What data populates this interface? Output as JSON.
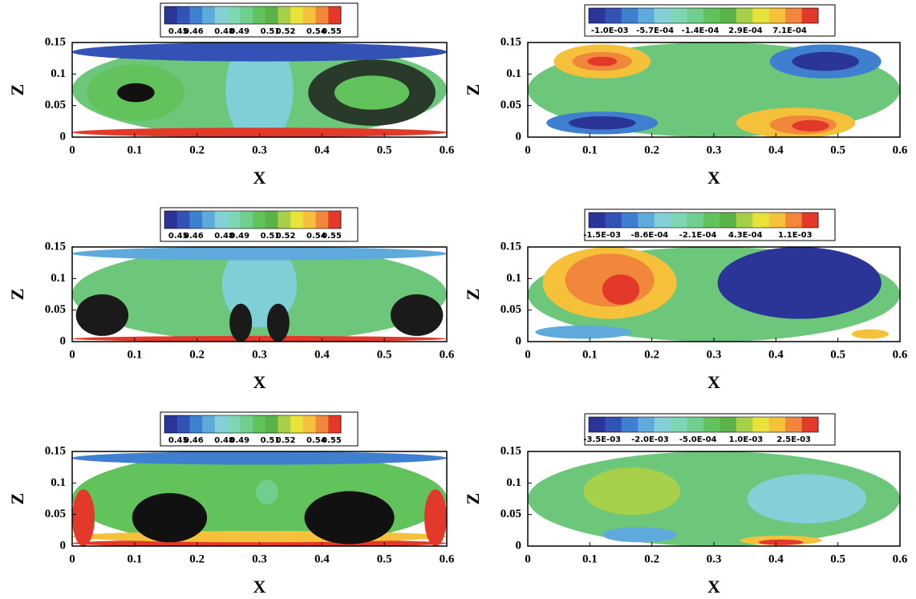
{
  "chart_data": [
    {
      "type": "contour",
      "xlabel": "X",
      "ylabel": "Z",
      "xlim": [
        0,
        0.6
      ],
      "ylim": [
        0,
        0.15
      ],
      "xticks": [
        0,
        0.1,
        0.2,
        0.3,
        0.4,
        0.5,
        0.6
      ],
      "yticks": [
        0,
        0.05,
        0.1,
        0.15
      ],
      "colorbar": {
        "lim": [
          0.441,
          0.556
        ],
        "ticks": [
          0.45,
          0.46,
          0.48,
          0.49,
          0.51,
          0.52,
          0.54,
          0.55
        ],
        "colors": [
          "#2b3597",
          "#3352b5",
          "#3f7fd0",
          "#5eaadc",
          "#84cfd8",
          "#7fd6b4",
          "#70cf8c",
          "#62c25c",
          "#5ab349",
          "#a6d04a",
          "#e8e33b",
          "#f6c13a",
          "#f0873a",
          "#e2392a"
        ]
      }
    },
    {
      "type": "contour",
      "xlabel": "X",
      "ylabel": "Z",
      "xlim": [
        0,
        0.6
      ],
      "ylim": [
        0,
        0.15
      ],
      "xticks": [
        0,
        0.1,
        0.2,
        0.3,
        0.4,
        0.5,
        0.6
      ],
      "yticks": [
        0,
        0.05,
        0.1,
        0.15
      ],
      "colorbar": {
        "lim": [
          -0.0012,
          0.00098
        ],
        "ticks": [
          {
            "value": -0.001,
            "label": "-1.0E-03"
          },
          {
            "value": -0.00057,
            "label": "-5.7E-04"
          },
          {
            "value": -0.00014,
            "label": "-1.4E-04"
          },
          {
            "value": 0.00029,
            "label": "2.9E-04"
          },
          {
            "value": 0.00071,
            "label": "7.1E-04"
          }
        ],
        "colors": [
          "#2b3597",
          "#3352b5",
          "#3f7fd0",
          "#5eaadc",
          "#84cfd8",
          "#7fd6b4",
          "#70cf8c",
          "#62c25c",
          "#5ab349",
          "#a6d04a",
          "#e8e33b",
          "#f6c13a",
          "#f0873a",
          "#e2392a"
        ]
      }
    },
    {
      "type": "contour",
      "xlabel": "X",
      "ylabel": "Z",
      "xlim": [
        0,
        0.6
      ],
      "ylim": [
        0,
        0.15
      ],
      "xticks": [
        0,
        0.1,
        0.2,
        0.3,
        0.4,
        0.5,
        0.6
      ],
      "yticks": [
        0,
        0.05,
        0.1,
        0.15
      ],
      "colorbar": {
        "lim": [
          0.441,
          0.556
        ],
        "ticks": [
          0.45,
          0.46,
          0.48,
          0.49,
          0.51,
          0.52,
          0.54,
          0.55
        ],
        "colors": [
          "#2b3597",
          "#3352b5",
          "#3f7fd0",
          "#5eaadc",
          "#84cfd8",
          "#7fd6b4",
          "#70cf8c",
          "#62c25c",
          "#5ab349",
          "#a6d04a",
          "#e8e33b",
          "#f6c13a",
          "#f0873a",
          "#e2392a"
        ]
      }
    },
    {
      "type": "contour",
      "xlabel": "X",
      "ylabel": "Z",
      "xlim": [
        0,
        0.6
      ],
      "ylim": [
        0,
        0.15
      ],
      "xticks": [
        0,
        0.1,
        0.2,
        0.3,
        0.4,
        0.5,
        0.6
      ],
      "yticks": [
        0,
        0.05,
        0.1,
        0.15
      ],
      "colorbar": {
        "lim": [
          -0.00168,
          0.00141
        ],
        "ticks": [
          {
            "value": -0.0015,
            "label": "-1.5E-03"
          },
          {
            "value": -0.00086,
            "label": "-8.6E-04"
          },
          {
            "value": -0.00021,
            "label": "-2.1E-04"
          },
          {
            "value": 0.00043,
            "label": "4.3E-04"
          },
          {
            "value": 0.0011,
            "label": "1.1E-03"
          }
        ],
        "colors": [
          "#2b3597",
          "#3352b5",
          "#3f7fd0",
          "#5eaadc",
          "#84cfd8",
          "#7fd6b4",
          "#70cf8c",
          "#62c25c",
          "#5ab349",
          "#a6d04a",
          "#e8e33b",
          "#f6c13a",
          "#f0873a",
          "#e2392a"
        ]
      }
    },
    {
      "type": "contour",
      "xlabel": "X",
      "ylabel": "Z",
      "xlim": [
        0,
        0.6
      ],
      "ylim": [
        0,
        0.15
      ],
      "xticks": [
        0,
        0.1,
        0.2,
        0.3,
        0.4,
        0.5,
        0.6
      ],
      "yticks": [
        0,
        0.05,
        0.1,
        0.15
      ],
      "colorbar": {
        "lim": [
          0.441,
          0.556
        ],
        "ticks": [
          0.45,
          0.46,
          0.48,
          0.49,
          0.51,
          0.52,
          0.54,
          0.55
        ],
        "colors": [
          "#2b3597",
          "#3352b5",
          "#3f7fd0",
          "#5eaadc",
          "#84cfd8",
          "#7fd6b4",
          "#70cf8c",
          "#62c25c",
          "#5ab349",
          "#a6d04a",
          "#e8e33b",
          "#f6c13a",
          "#f0873a",
          "#e2392a"
        ]
      }
    },
    {
      "type": "contour",
      "xlabel": "X",
      "ylabel": "Z",
      "xlim": [
        0,
        0.6
      ],
      "ylim": [
        0,
        0.15
      ],
      "xticks": [
        0,
        0.1,
        0.2,
        0.3,
        0.4,
        0.5,
        0.6
      ],
      "yticks": [
        0,
        0.05,
        0.1,
        0.15
      ],
      "colorbar": {
        "lim": [
          -0.00392,
          0.00326
        ],
        "ticks": [
          {
            "value": -0.0035,
            "label": "-3.5E-03"
          },
          {
            "value": -0.002,
            "label": "-2.0E-03"
          },
          {
            "value": -0.0005,
            "label": "-5.0E-04"
          },
          {
            "value": 0.001,
            "label": "1.0E-03"
          },
          {
            "value": 0.0025,
            "label": "2.5E-03"
          }
        ],
        "colors": [
          "#2b3597",
          "#3352b5",
          "#3f7fd0",
          "#5eaadc",
          "#84cfd8",
          "#7fd6b4",
          "#70cf8c",
          "#62c25c",
          "#5ab349",
          "#a6d04a",
          "#e8e33b",
          "#f6c13a",
          "#f0873a",
          "#e2392a"
        ]
      }
    }
  ]
}
